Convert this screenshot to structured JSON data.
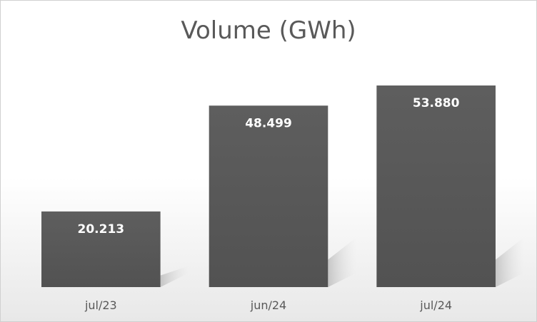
{
  "chart_data": {
    "type": "bar",
    "title": "Volume (GWh)",
    "xlabel": "",
    "ylabel": "",
    "categories": [
      "jul/23",
      "jun/24",
      "jul/24"
    ],
    "values": [
      20.213,
      48.499,
      53.88
    ],
    "value_labels": [
      "20.213",
      "48.499",
      "53.880"
    ],
    "ylim": [
      0,
      60
    ],
    "grid": false,
    "legend": "none",
    "colors": {
      "bar": "#555555",
      "bar_light": "#666666",
      "title": "#595959",
      "label": "#ffffff",
      "background_top": "#ffffff",
      "background_bottom": "#e6e6e6"
    }
  }
}
